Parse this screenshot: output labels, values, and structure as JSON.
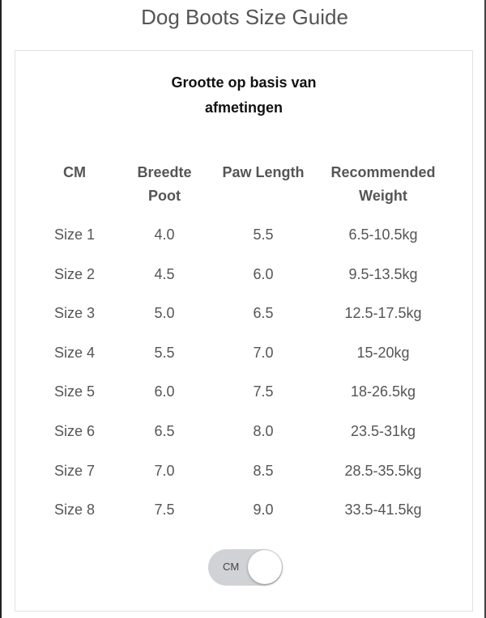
{
  "title": "Dog Boots Size Guide",
  "card": {
    "title_line1": "Grootte op basis van",
    "title_line2": "afmetingen",
    "headers": [
      {
        "line1": "CM",
        "line2": ""
      },
      {
        "line1": "Breedte",
        "line2": "Poot"
      },
      {
        "line1": "Paw Length",
        "line2": ""
      },
      {
        "line1": "Recommended",
        "line2": "Weight"
      }
    ],
    "rows": [
      [
        "Size 1",
        "4.0",
        "5.5",
        "6.5-10.5kg"
      ],
      [
        "Size 2",
        "4.5",
        "6.0",
        "9.5-13.5kg"
      ],
      [
        "Size 3",
        "5.0",
        "6.5",
        "12.5-17.5kg"
      ],
      [
        "Size 4",
        "5.5",
        "7.0",
        "15-20kg"
      ],
      [
        "Size 5",
        "6.0",
        "7.5",
        "18-26.5kg"
      ],
      [
        "Size 6",
        "6.5",
        "8.0",
        "23.5-31kg"
      ],
      [
        "Size 7",
        "7.0",
        "8.5",
        "28.5-35.5kg"
      ],
      [
        "Size 8",
        "7.5",
        "9.0",
        "33.5-41.5kg"
      ]
    ],
    "unit_toggle": {
      "label": "CM",
      "state": "on"
    }
  }
}
